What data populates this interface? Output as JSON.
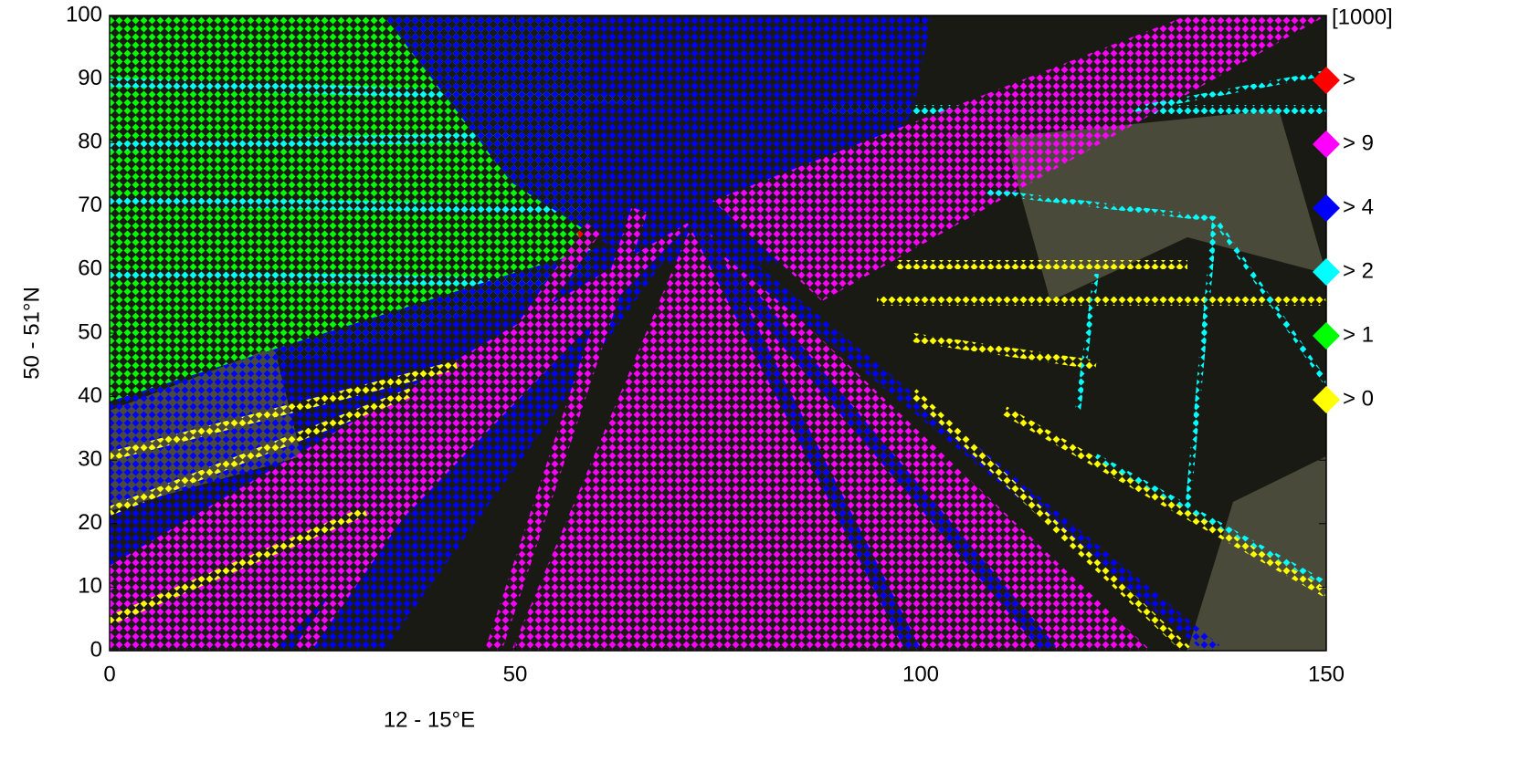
{
  "chart_data": {
    "type": "scatter",
    "xlabel": "12 - 15°E",
    "ylabel": "50 - 51°N",
    "xlim": [
      0,
      150
    ],
    "xticks": [
      0,
      50,
      100,
      150
    ],
    "ylim": [
      0,
      100
    ],
    "yticks": [
      0,
      10,
      20,
      30,
      40,
      50,
      60,
      70,
      80,
      90,
      100
    ],
    "grid": false,
    "legend": {
      "title": "[1000]",
      "items": [
        {
          "label": ">",
          "color": "#ff0000"
        },
        {
          "label": "> 9",
          "color": "#ff00ff"
        },
        {
          "label": "> 4",
          "color": "#0000ff"
        },
        {
          "label": "> 2",
          "color": "#00ffff"
        },
        {
          "label": "> 1",
          "color": "#00ff00"
        },
        {
          "label": "> 0",
          "color": "#ffff00"
        }
      ]
    }
  }
}
